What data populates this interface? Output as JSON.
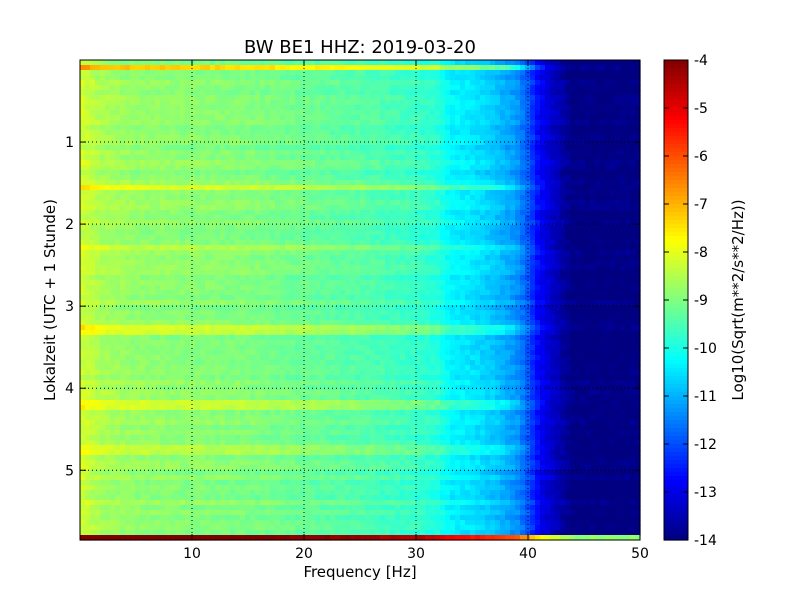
{
  "chart_data": {
    "type": "heatmap",
    "title": "BW BE1 HHZ: 2019-03-20",
    "xlabel": "Frequency [Hz]",
    "ylabel": "Lokalzeit (UTC + 1 Stunde)",
    "xlim": [
      0,
      50
    ],
    "ylim": [
      5.85,
      0.0
    ],
    "y_inverted": true,
    "x_ticks": [
      "10",
      "20",
      "30",
      "40",
      "50"
    ],
    "y_ticks": [
      "1",
      "2",
      "3",
      "4",
      "5"
    ],
    "grid": true,
    "colormap": "jet",
    "colorbar": {
      "label": "Log10(Sqrt(m**2/s**2/Hz))",
      "min": -14,
      "max": -4,
      "ticks": [
        "-4",
        "-5",
        "-6",
        "-7",
        "-8",
        "-9",
        "-10",
        "-11",
        "-12",
        "-13",
        "-14"
      ]
    },
    "frequency_profile": {
      "frequency_hz": [
        0,
        2,
        5,
        10,
        15,
        20,
        25,
        30,
        32,
        33,
        35,
        37,
        39,
        40,
        41,
        43,
        44,
        45,
        50
      ],
      "log10_amplitude": [
        -8.2,
        -8.6,
        -8.8,
        -8.9,
        -9.0,
        -9.2,
        -9.4,
        -9.7,
        -9.9,
        -10.3,
        -10.5,
        -10.8,
        -11.3,
        -11.9,
        -12.8,
        -13.6,
        -14.0,
        -14.0,
        -14.0
      ]
    },
    "bright_bands": [
      {
        "time_h": 0.1,
        "offset": 1.4
      },
      {
        "time_h": 1.55,
        "offset": 0.7
      },
      {
        "time_h": 2.3,
        "offset": 0.5
      },
      {
        "time_h": 2.6,
        "offset": 0.3
      },
      {
        "time_h": 3.3,
        "offset": 0.6
      },
      {
        "time_h": 4.2,
        "offset": 0.6
      },
      {
        "time_h": 4.75,
        "offset": 0.5
      },
      {
        "time_h": 5.85,
        "offset": 5.0
      }
    ]
  }
}
